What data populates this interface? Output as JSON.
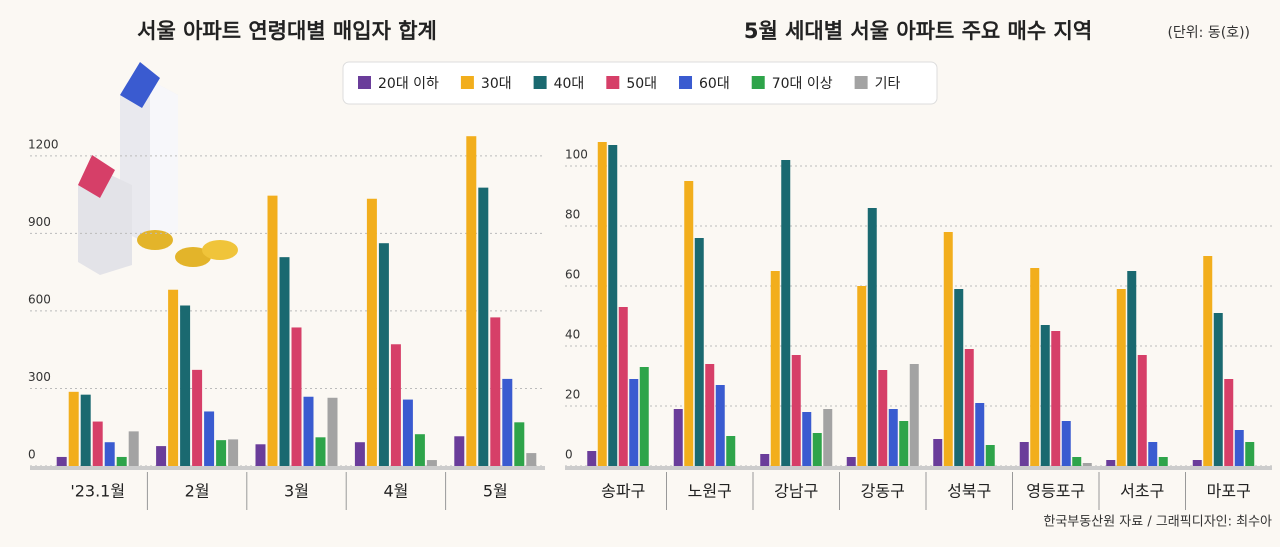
{
  "legend_series": [
    {
      "name": "20대 이하",
      "color": "#6a3d9a"
    },
    {
      "name": "30대",
      "color": "#f2ae1c"
    },
    {
      "name": "40대",
      "color": "#1a6970"
    },
    {
      "name": "50대",
      "color": "#d63f68"
    },
    {
      "name": "60대",
      "color": "#3a5bd0"
    },
    {
      "name": "70대 이상",
      "color": "#2ea44a"
    },
    {
      "name": "기타",
      "color": "#a3a3a3"
    }
  ],
  "source": "한국부동산원 자료 / 그래픽디자인: 최수아",
  "chart_data": [
    {
      "type": "bar",
      "title": "서울 아파트 연령대별 매입자 합계",
      "categories": [
        "'23.1월",
        "2월",
        "3월",
        "4월",
        "5월"
      ],
      "ylim": [
        0,
        1300
      ],
      "yticks": [
        0,
        300,
        600,
        900,
        1200
      ],
      "grid": true,
      "series": [
        {
          "values": [
            35,
            77,
            84,
            92,
            115
          ]
        },
        {
          "values": [
            287,
            682,
            1046,
            1034,
            1276
          ]
        },
        {
          "values": [
            276,
            621,
            808,
            862,
            1077
          ]
        },
        {
          "values": [
            172,
            372,
            536,
            471,
            575
          ]
        },
        {
          "values": [
            92,
            211,
            268,
            257,
            337
          ]
        },
        {
          "values": [
            35,
            100,
            111,
            123,
            169
          ]
        },
        {
          "values": [
            134,
            103,
            264,
            23,
            50
          ]
        }
      ]
    },
    {
      "type": "bar",
      "title": "5월 세대별 서울 아파트 주요 매수 지역",
      "unit_note": "(단위: 동(호))",
      "categories": [
        "송파구",
        "노원구",
        "강남구",
        "강동구",
        "성북구",
        "영등포구",
        "서초구",
        "마포구"
      ],
      "ylim": [
        0,
        112
      ],
      "yticks": [
        0,
        20,
        40,
        60,
        80,
        100
      ],
      "grid": true,
      "series": [
        {
          "values": [
            5,
            19,
            4,
            3,
            9,
            8,
            2,
            2
          ]
        },
        {
          "values": [
            108,
            95,
            65,
            60,
            78,
            66,
            59,
            70
          ]
        },
        {
          "values": [
            107,
            76,
            102,
            86,
            59,
            47,
            65,
            51
          ]
        },
        {
          "values": [
            53,
            34,
            37,
            32,
            39,
            45,
            37,
            29
          ]
        },
        {
          "values": [
            29,
            27,
            18,
            19,
            21,
            15,
            8,
            12
          ]
        },
        {
          "values": [
            33,
            10,
            11,
            15,
            7,
            3,
            3,
            8
          ]
        },
        {
          "values": [
            0,
            0,
            19,
            34,
            0,
            1,
            0,
            0
          ]
        }
      ]
    }
  ]
}
